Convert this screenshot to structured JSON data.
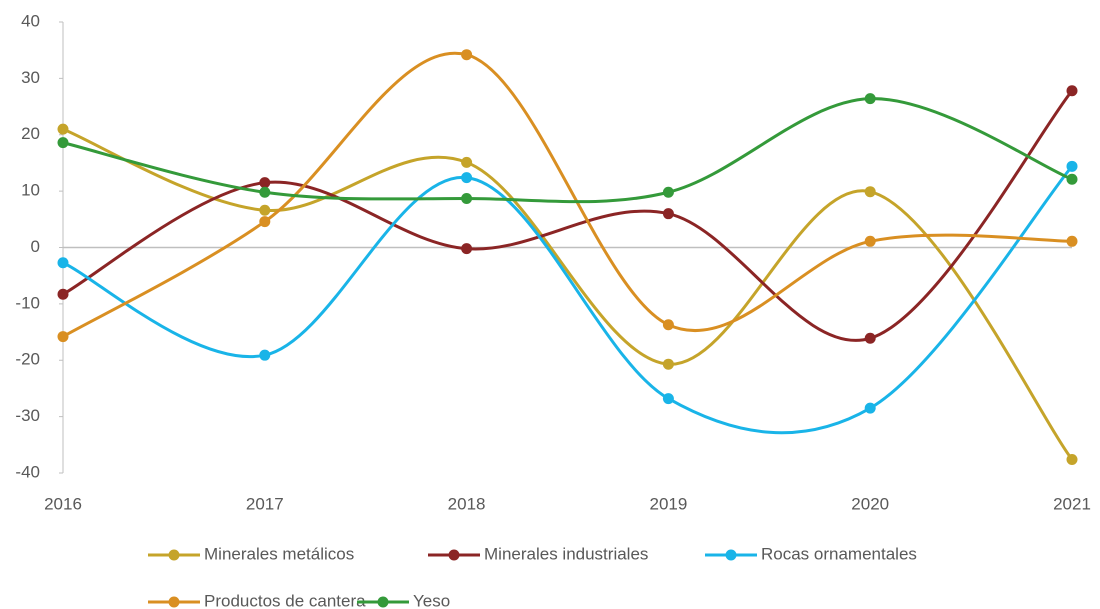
{
  "chart_data": {
    "type": "line",
    "smooth": true,
    "categories": [
      "2016",
      "2017",
      "2018",
      "2019",
      "2020",
      "2021"
    ],
    "series": [
      {
        "name": "Minerales metálicos",
        "color": "#c5a42a",
        "values": [
          21,
          6.6,
          15.1,
          -20.7,
          9.9,
          -37.6
        ]
      },
      {
        "name": "Minerales industriales",
        "color": "#8b2525",
        "values": [
          -8.3,
          11.5,
          -0.2,
          6.0,
          -16.1,
          27.8
        ]
      },
      {
        "name": "Rocas ornamentales",
        "color": "#19b4e8",
        "values": [
          -2.7,
          -19.1,
          12.4,
          -26.8,
          -28.5,
          14.4
        ]
      },
      {
        "name": "Productos de cantera",
        "color": "#d98f22",
        "values": [
          -15.8,
          4.6,
          34.2,
          -13.7,
          1.1,
          1.1
        ]
      },
      {
        "name": "Yeso",
        "color": "#349a3a",
        "values": [
          18.6,
          9.8,
          8.7,
          9.8,
          26.4,
          12.1
        ]
      }
    ],
    "ylim": [
      -40,
      40
    ],
    "yticks": [
      -40,
      -30,
      -20,
      -10,
      0,
      10,
      20,
      30,
      40
    ],
    "grid": false,
    "legend": "bottom"
  }
}
